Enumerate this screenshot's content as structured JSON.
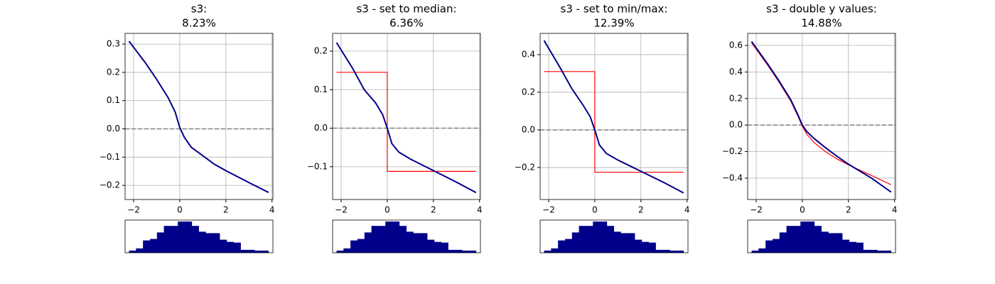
{
  "chart_data": [
    {
      "type": "line",
      "title": "s3:",
      "subtitle": "8.23%",
      "xlim": [
        -2.37,
        4.04
      ],
      "ylim": [
        -0.25,
        0.338
      ],
      "xticks": [
        {
          "value": -2,
          "label": "−2"
        },
        0,
        2,
        4
      ],
      "yticks": [
        {
          "value": -0.2,
          "label": "−0.2"
        },
        {
          "value": -0.1,
          "label": "−0.1"
        },
        {
          "value": 0,
          "label": "0.0"
        },
        0.1,
        0.2,
        0.3
      ],
      "grid": true,
      "reference_line": {
        "value": 0,
        "color": "#808080"
      },
      "series": [
        {
          "color": "#00008b",
          "x": [
            -2.2,
            -1.5,
            -1,
            -0.5,
            -0.2,
            0,
            0.2,
            0.5,
            1,
            1.5,
            2,
            3,
            3.85
          ],
          "values": [
            0.31,
            0.235,
            0.175,
            0.11,
            0.06,
            0.005,
            -0.03,
            -0.065,
            -0.095,
            -0.125,
            -0.148,
            -0.19,
            -0.225
          ]
        }
      ],
      "histogram": {
        "type": "histogram",
        "color": "#00008b",
        "ylim": [
          0,
          45
        ],
        "bins": [
          -2.2,
          -1.8975,
          -1.595,
          -1.2925,
          -0.99,
          -0.6875,
          -0.385,
          -0.0825,
          0.22,
          0.5225,
          0.825,
          1.1275,
          1.43,
          1.7325,
          2.035,
          2.3375,
          2.64,
          2.9425,
          3.245,
          3.5475,
          3.85
        ],
        "counts": [
          3,
          6,
          17,
          19,
          28,
          37,
          37,
          43,
          43,
          37,
          29,
          27,
          27,
          18,
          15,
          14,
          4,
          4,
          3,
          3
        ]
      }
    },
    {
      "type": "line",
      "title": "s3 - set to median:",
      "subtitle": "6.36%",
      "xlim": [
        -2.37,
        4.04
      ],
      "ylim": [
        -0.185,
        0.246
      ],
      "xticks": [
        {
          "value": -2,
          "label": "−2"
        },
        0,
        2,
        4
      ],
      "yticks": [
        {
          "value": -0.1,
          "label": "−0.1"
        },
        {
          "value": 0,
          "label": "0.0"
        },
        0.1,
        0.2
      ],
      "grid": true,
      "reference_line": {
        "value": 0,
        "color": "#808080"
      },
      "series": [
        {
          "color": "#ff0000",
          "x": [
            -2.2,
            0,
            0,
            3.85
          ],
          "values": [
            0.145,
            0.145,
            -0.112,
            -0.112
          ]
        },
        {
          "color": "#00008b",
          "x": [
            -2.2,
            -1.5,
            -1,
            -0.5,
            -0.2,
            0,
            0.2,
            0.5,
            1,
            1.5,
            2,
            3,
            3.85
          ],
          "values": [
            0.222,
            0.155,
            0.1,
            0.065,
            0.035,
            0.0,
            -0.04,
            -0.062,
            -0.08,
            -0.095,
            -0.11,
            -0.14,
            -0.167
          ]
        }
      ],
      "histogram": {
        "type": "histogram",
        "color": "#00008b",
        "ylim": [
          0,
          45
        ],
        "bins": [
          -2.2,
          -1.8975,
          -1.595,
          -1.2925,
          -0.99,
          -0.6875,
          -0.385,
          -0.0825,
          0.22,
          0.5225,
          0.825,
          1.1275,
          1.43,
          1.7325,
          2.035,
          2.3375,
          2.64,
          2.9425,
          3.245,
          3.5475,
          3.85
        ],
        "counts": [
          3,
          6,
          17,
          19,
          28,
          37,
          37,
          43,
          43,
          37,
          29,
          27,
          27,
          18,
          15,
          14,
          4,
          4,
          3,
          3
        ]
      }
    },
    {
      "type": "line",
      "title": "s3 - set to min/max:",
      "subtitle": "12.39%",
      "xlim": [
        -2.37,
        4.04
      ],
      "ylim": [
        -0.37,
        0.513
      ],
      "xticks": [
        {
          "value": -2,
          "label": "−2"
        },
        0,
        2,
        4
      ],
      "yticks": [
        {
          "value": -0.2,
          "label": "−0.2"
        },
        {
          "value": 0,
          "label": "0.0"
        },
        0.2,
        0.4
      ],
      "grid": true,
      "reference_line": {
        "value": 0,
        "color": "#808080"
      },
      "series": [
        {
          "color": "#ff0000",
          "x": [
            -2.2,
            0,
            0,
            3.85
          ],
          "values": [
            0.31,
            0.31,
            -0.225,
            -0.225
          ]
        },
        {
          "color": "#00008b",
          "x": [
            -2.2,
            -1.5,
            -1,
            -0.5,
            -0.2,
            0,
            0.2,
            0.5,
            1,
            1.5,
            2,
            3,
            3.85
          ],
          "values": [
            0.475,
            0.33,
            0.22,
            0.13,
            0.07,
            0.0,
            -0.08,
            -0.125,
            -0.16,
            -0.19,
            -0.22,
            -0.28,
            -0.335
          ]
        }
      ],
      "histogram": {
        "type": "histogram",
        "color": "#00008b",
        "ylim": [
          0,
          45
        ],
        "bins": [
          -2.2,
          -1.8975,
          -1.595,
          -1.2925,
          -0.99,
          -0.6875,
          -0.385,
          -0.0825,
          0.22,
          0.5225,
          0.825,
          1.1275,
          1.43,
          1.7325,
          2.035,
          2.3375,
          2.64,
          2.9425,
          3.245,
          3.5475,
          3.85
        ],
        "counts": [
          3,
          6,
          17,
          19,
          28,
          37,
          37,
          43,
          43,
          37,
          29,
          27,
          27,
          18,
          15,
          14,
          4,
          4,
          3,
          3
        ]
      }
    },
    {
      "type": "line",
      "title": "s3 - double y values:",
      "subtitle": "14.88%",
      "xlim": [
        -2.37,
        4.04
      ],
      "ylim": [
        -0.561,
        0.691
      ],
      "xticks": [
        {
          "value": -2,
          "label": "−2"
        },
        0,
        2,
        4
      ],
      "yticks": [
        {
          "value": -0.4,
          "label": "−0.4"
        },
        {
          "value": -0.2,
          "label": "−0.2"
        },
        {
          "value": 0,
          "label": "0.0"
        },
        0.2,
        0.4,
        0.6
      ],
      "grid": true,
      "reference_line": {
        "value": 0,
        "color": "#808080"
      },
      "series": [
        {
          "color": "#ff0000",
          "x": [
            -2.2,
            -1.5,
            -1,
            -0.5,
            -0.2,
            0,
            0.2,
            0.5,
            1,
            1.5,
            2,
            3,
            3.85
          ],
          "values": [
            0.62,
            0.45,
            0.32,
            0.18,
            0.07,
            -0.01,
            -0.07,
            -0.13,
            -0.2,
            -0.255,
            -0.3,
            -0.38,
            -0.45
          ]
        },
        {
          "color": "#00008b",
          "x": [
            -2.2,
            -1.5,
            -1,
            -0.5,
            -0.2,
            0,
            0.2,
            0.5,
            1,
            1.5,
            2,
            3,
            3.85
          ],
          "values": [
            0.63,
            0.46,
            0.33,
            0.19,
            0.08,
            0.0,
            -0.05,
            -0.1,
            -0.17,
            -0.235,
            -0.295,
            -0.4,
            -0.505
          ]
        }
      ],
      "histogram": {
        "type": "histogram",
        "color": "#00008b",
        "ylim": [
          0,
          45
        ],
        "bins": [
          -2.2,
          -1.8975,
          -1.595,
          -1.2925,
          -0.99,
          -0.6875,
          -0.385,
          -0.0825,
          0.22,
          0.5225,
          0.825,
          1.1275,
          1.43,
          1.7325,
          2.035,
          2.3375,
          2.64,
          2.9425,
          3.245,
          3.5475,
          3.85
        ],
        "counts": [
          3,
          6,
          17,
          19,
          28,
          37,
          37,
          43,
          43,
          37,
          29,
          27,
          27,
          18,
          15,
          14,
          4,
          4,
          3,
          3
        ]
      }
    }
  ]
}
